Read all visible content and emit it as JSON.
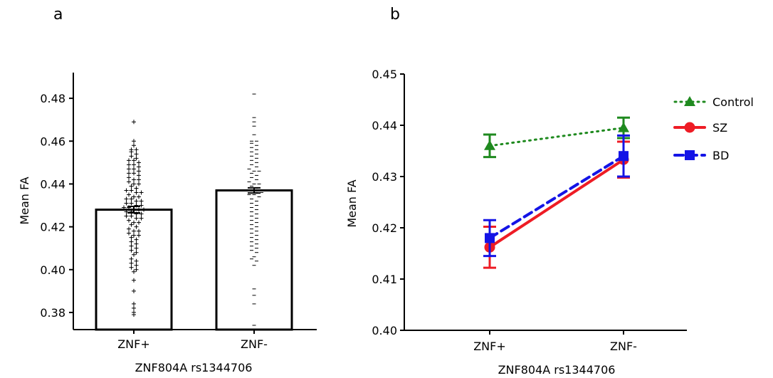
{
  "panels": {
    "a": {
      "letter": "a"
    },
    "b": {
      "letter": "b"
    }
  },
  "colors": {
    "bar_fill": "#ffffff",
    "bar_stroke": "#000000",
    "control": "#1f8a1f",
    "sz": "#ee1c25",
    "bd": "#1414e6"
  },
  "chart_data": [
    {
      "type": "bar",
      "categories": [
        "ZNF+",
        "ZNF-"
      ],
      "values": [
        0.428,
        0.437
      ],
      "sem": [
        0.0015,
        0.0012
      ],
      "xlabel": "ZNF804A rs1344706",
      "ylabel": "Mean FA",
      "ylim": [
        0.372,
        0.492
      ],
      "yticks": [
        0.38,
        0.4,
        0.42,
        0.44,
        0.46,
        0.48
      ],
      "ytick_labels": [
        "0.38",
        "0.40",
        "0.42",
        "0.44",
        "0.46",
        "0.48"
      ],
      "grid": false,
      "scatter_overlay": {
        "ZNF+": [
          0.469,
          0.46,
          0.458,
          0.456,
          0.456,
          0.455,
          0.454,
          0.453,
          0.452,
          0.451,
          0.451,
          0.45,
          0.449,
          0.449,
          0.448,
          0.447,
          0.447,
          0.446,
          0.445,
          0.445,
          0.444,
          0.443,
          0.442,
          0.442,
          0.441,
          0.44,
          0.44,
          0.439,
          0.438,
          0.437,
          0.437,
          0.436,
          0.436,
          0.435,
          0.434,
          0.434,
          0.433,
          0.433,
          0.432,
          0.432,
          0.431,
          0.431,
          0.43,
          0.43,
          0.429,
          0.429,
          0.428,
          0.428,
          0.428,
          0.427,
          0.427,
          0.426,
          0.426,
          0.425,
          0.425,
          0.424,
          0.424,
          0.423,
          0.422,
          0.422,
          0.421,
          0.42,
          0.419,
          0.418,
          0.418,
          0.417,
          0.416,
          0.416,
          0.415,
          0.414,
          0.413,
          0.412,
          0.411,
          0.41,
          0.409,
          0.408,
          0.407,
          0.405,
          0.404,
          0.403,
          0.402,
          0.401,
          0.4,
          0.399,
          0.395,
          0.39,
          0.384,
          0.382,
          0.38,
          0.379
        ],
        "ZNF-": [
          0.482,
          0.471,
          0.469,
          0.467,
          0.463,
          0.46,
          0.46,
          0.459,
          0.458,
          0.457,
          0.456,
          0.455,
          0.454,
          0.453,
          0.452,
          0.451,
          0.45,
          0.449,
          0.448,
          0.447,
          0.446,
          0.446,
          0.445,
          0.444,
          0.443,
          0.442,
          0.441,
          0.44,
          0.44,
          0.439,
          0.438,
          0.437,
          0.437,
          0.436,
          0.436,
          0.435,
          0.435,
          0.434,
          0.433,
          0.432,
          0.431,
          0.43,
          0.429,
          0.428,
          0.427,
          0.426,
          0.425,
          0.424,
          0.423,
          0.422,
          0.421,
          0.42,
          0.419,
          0.418,
          0.417,
          0.416,
          0.415,
          0.414,
          0.413,
          0.412,
          0.411,
          0.41,
          0.409,
          0.408,
          0.406,
          0.405,
          0.404,
          0.402,
          0.391,
          0.388,
          0.384,
          0.374
        ]
      }
    },
    {
      "type": "line",
      "categories": [
        "ZNF+",
        "ZNF-"
      ],
      "xlabel": "ZNF804A rs1344706",
      "ylabel": "Mean FA",
      "ylim": [
        0.4,
        0.45
      ],
      "yticks": [
        0.4,
        0.41,
        0.42,
        0.43,
        0.44,
        0.45
      ],
      "ytick_labels": [
        "0.40",
        "0.41",
        "0.42",
        "0.43",
        "0.44",
        "0.45"
      ],
      "grid": false,
      "legend_position": "top-right",
      "series": [
        {
          "name": "Control",
          "key": "control",
          "values": [
            0.436,
            0.4395
          ],
          "error": [
            0.0022,
            0.002
          ],
          "marker": "triangle",
          "dash": "dotted"
        },
        {
          "name": "SZ",
          "key": "sz",
          "values": [
            0.4162,
            0.4333
          ],
          "error": [
            0.004,
            0.0035
          ],
          "marker": "circle",
          "dash": "solid"
        },
        {
          "name": "BD",
          "key": "bd",
          "values": [
            0.418,
            0.434
          ],
          "error": [
            0.0035,
            0.004
          ],
          "marker": "square",
          "dash": "dashed"
        }
      ]
    }
  ]
}
